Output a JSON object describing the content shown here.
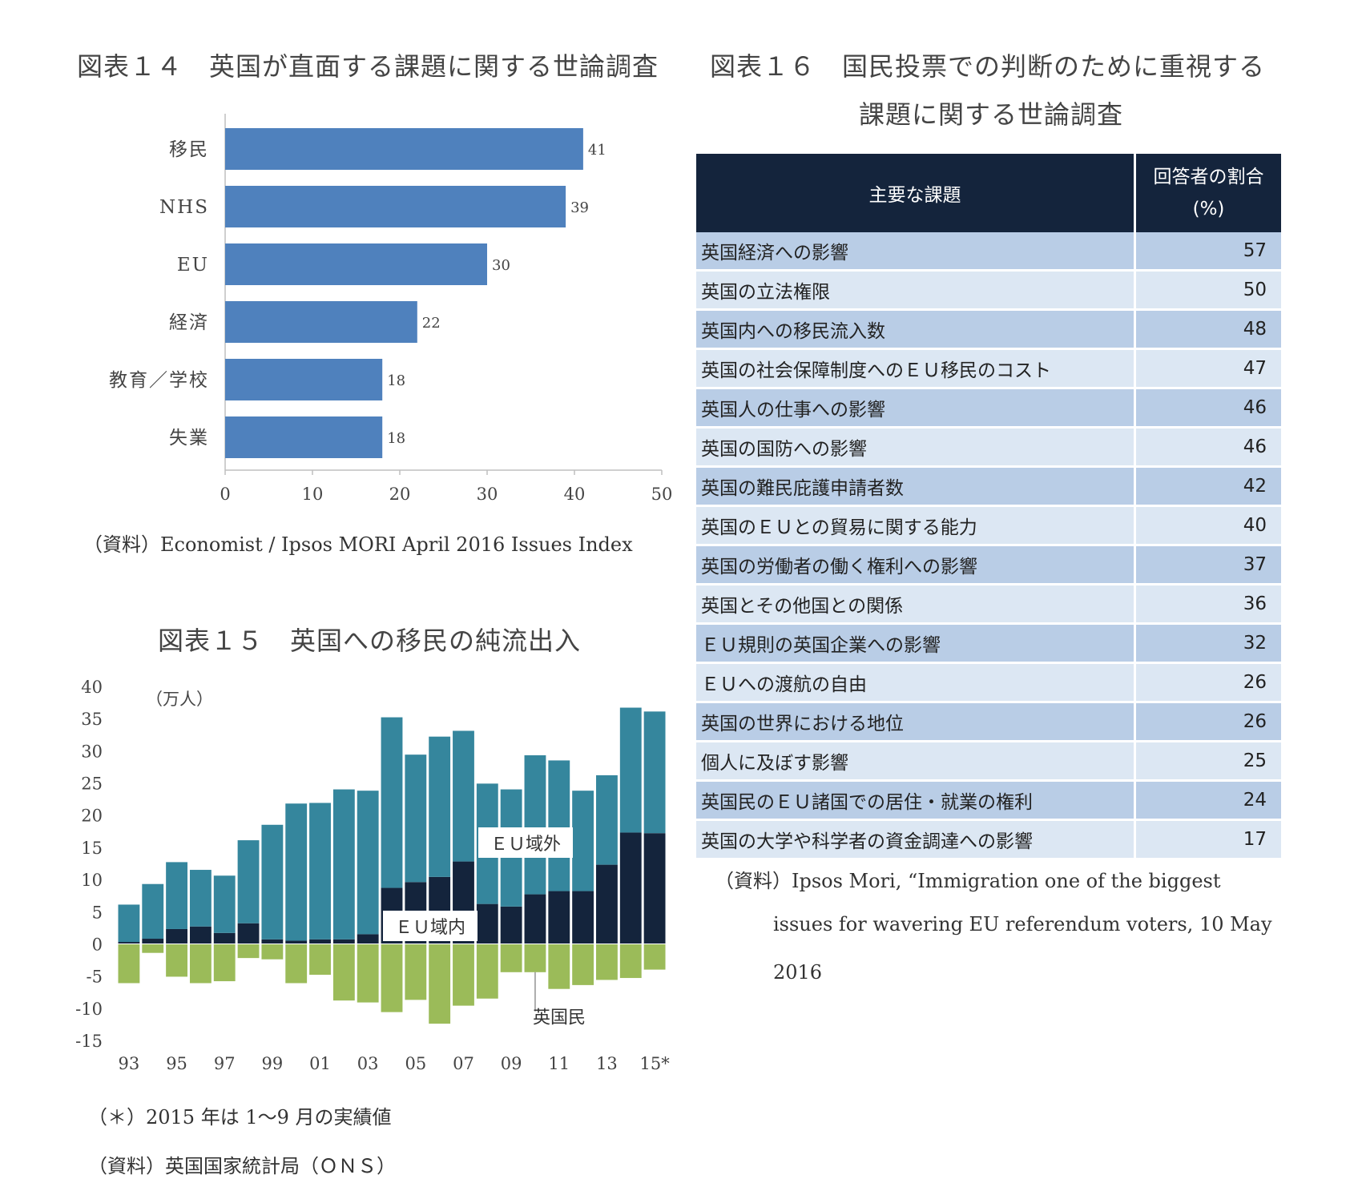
{
  "fig14": {
    "title": "図表１４　英国が直面する課題に関する世論調査",
    "source": "（資料）Economist / Ipsos MORI April 2016 Issues Index"
  },
  "fig15": {
    "title": "図表１５　英国への移民の純流出入",
    "note1": "（＊）2015 年は 1～9 月の実績値",
    "note2": "（資料）英国国家統計局（ＯＮＳ）"
  },
  "fig16": {
    "title_line1": "図表１６　国民投票での判断のために重視する",
    "title_line2": "課題に関する世論調査",
    "source_line1": "（資料）Ipsos Mori, “Immigration one of the biggest",
    "source_line2": "issues for wavering EU referendum voters, 10 May",
    "source_line3": "2016"
  },
  "chart_data": [
    {
      "type": "bar",
      "orientation": "horizontal",
      "categories": [
        "移民",
        "NHS",
        "EU",
        "経済",
        "教育／学校",
        "失業"
      ],
      "values": [
        41,
        39,
        30,
        22,
        18,
        18
      ],
      "xlim": [
        0,
        50
      ],
      "xticks": [
        "0",
        "10",
        "20",
        "30",
        "40",
        "50"
      ],
      "data_labels": [
        "41",
        "39",
        "30",
        "22",
        "18",
        "18"
      ],
      "color": "#4f81bd"
    },
    {
      "type": "bar",
      "stacked": true,
      "ylabel": "（万人）",
      "ylim": [
        -15,
        40
      ],
      "yticks": [
        "40",
        "35",
        "30",
        "25",
        "20",
        "15",
        "10",
        "5",
        "0",
        "-5",
        "-10",
        "-15"
      ],
      "x": [
        "93",
        "94",
        "95",
        "96",
        "97",
        "98",
        "99",
        "00",
        "01",
        "02",
        "03",
        "04",
        "05",
        "06",
        "07",
        "08",
        "09",
        "10",
        "11",
        "12",
        "13",
        "14",
        "15*"
      ],
      "xtick_labels": [
        "93",
        "95",
        "97",
        "99",
        "01",
        "03",
        "05",
        "07",
        "09",
        "11",
        "13",
        "15*"
      ],
      "series": [
        {
          "name": "ＥＵ域内",
          "color": "#14243c",
          "values": [
            0.3,
            0.8,
            2.3,
            2.7,
            1.7,
            3.2,
            0.7,
            0.5,
            0.7,
            0.7,
            1.5,
            8.7,
            9.6,
            10.4,
            12.8,
            6.2,
            5.8,
            7.7,
            8.2,
            8.2,
            12.3,
            17.3,
            17.2
          ]
        },
        {
          "name": "ＥＵ域外",
          "color": "#35869d",
          "values": [
            5.8,
            8.5,
            10.4,
            8.8,
            8.9,
            12.9,
            17.8,
            21.3,
            21.2,
            23.3,
            22.3,
            26.5,
            19.8,
            21.8,
            20.3,
            18.7,
            18.2,
            21.6,
            20.3,
            15.6,
            13.9,
            19.4,
            18.9
          ]
        },
        {
          "name": "英国民",
          "color": "#9bbb59",
          "values": [
            -6.1,
            -1.4,
            -5.1,
            -6.1,
            -5.8,
            -2.2,
            -2.4,
            -6.1,
            -4.8,
            -8.8,
            -9.1,
            -10.6,
            -8.7,
            -12.4,
            -9.6,
            -8.5,
            -4.4,
            -4.4,
            -7.0,
            -6.4,
            -5.6,
            -5.3,
            -4.0
          ]
        }
      ]
    },
    {
      "type": "table",
      "headers": [
        "主要な課題",
        "回答者の割合",
        "(%)"
      ],
      "rows": [
        [
          "英国経済への影響",
          "57"
        ],
        [
          "英国の立法権限",
          "50"
        ],
        [
          "英国内への移民流入数",
          "48"
        ],
        [
          "英国の社会保障制度へのＥＵ移民のコスト",
          "47"
        ],
        [
          "英国人の仕事への影響",
          "46"
        ],
        [
          "英国の国防への影響",
          "46"
        ],
        [
          "英国の難民庇護申請者数",
          "42"
        ],
        [
          "英国のＥＵとの貿易に関する能力",
          "40"
        ],
        [
          "英国の労働者の働く権利への影響",
          "37"
        ],
        [
          "英国とその他国との関係",
          "36"
        ],
        [
          "ＥＵ規則の英国企業への影響",
          "32"
        ],
        [
          "ＥＵへの渡航の自由",
          "26"
        ],
        [
          "英国の世界における地位",
          "26"
        ],
        [
          "個人に及ぼす影響",
          "25"
        ],
        [
          "英国民のＥＵ諸国での居住・就業の権利",
          "24"
        ],
        [
          "英国の大学や科学者の資金調達への影響",
          "17"
        ]
      ]
    }
  ]
}
